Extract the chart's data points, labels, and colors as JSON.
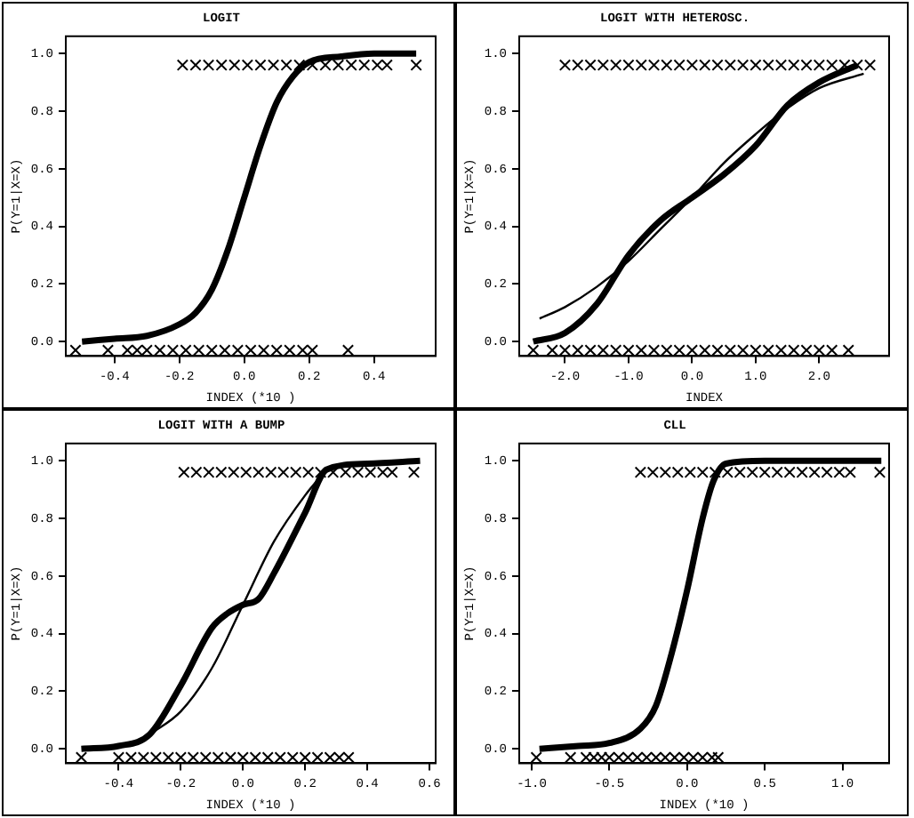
{
  "chart_data": [
    {
      "type": "line",
      "title": "LOGIT",
      "xlabel": "INDEX (*10 )",
      "ylabel": "P(Y=1|X=X)",
      "xlim": [
        -0.55,
        0.59
      ],
      "xticks": [
        {
          "value": -0.4,
          "label": "-0.4"
        },
        {
          "value": -0.2,
          "label": "-0.2"
        },
        {
          "value": 0,
          "label": "0.0"
        },
        {
          "value": 0.2,
          "label": "0.2"
        },
        {
          "value": 0.4,
          "label": "0.4"
        }
      ],
      "ylim": [
        -0.05,
        1.06
      ],
      "yticks": [
        {
          "value": 0,
          "label": "0.0"
        },
        {
          "value": 0.2,
          "label": "0.2"
        },
        {
          "value": 0.4,
          "label": "0.4"
        },
        {
          "value": 0.6,
          "label": "0.6"
        },
        {
          "value": 0.8,
          "label": "0.8"
        },
        {
          "value": 1,
          "label": "1.0"
        }
      ],
      "grid": false,
      "legend": false,
      "series": [
        {
          "marker": "none",
          "color": "#000000",
          "x": [
            -0.5,
            -0.4,
            -0.3,
            -0.2,
            -0.15,
            -0.1,
            -0.05,
            0,
            0.05,
            0.1,
            0.15,
            0.2,
            0.3,
            0.4,
            0.53
          ],
          "values": [
            0.0,
            0.01,
            0.02,
            0.06,
            0.1,
            0.18,
            0.32,
            0.5,
            0.68,
            0.83,
            0.92,
            0.97,
            0.99,
            1.0,
            1.0
          ]
        },
        {
          "type": "scatter",
          "marker": "cross",
          "color": "#000000",
          "x": [
            -0.19,
            -0.15,
            -0.11,
            -0.07,
            -0.03,
            0.01,
            0.05,
            0.09,
            0.13,
            0.17,
            0.21,
            0.25,
            0.29,
            0.33,
            0.37,
            0.41,
            0.44,
            0.53
          ],
          "values": [
            0.96,
            0.96,
            0.96,
            0.96,
            0.96,
            0.96,
            0.96,
            0.96,
            0.96,
            0.96,
            0.96,
            0.96,
            0.96,
            0.96,
            0.96,
            0.96,
            0.96,
            0.96
          ]
        },
        {
          "type": "scatter",
          "marker": "cross",
          "color": "#000000",
          "x": [
            -0.52,
            -0.42,
            -0.36,
            -0.33,
            -0.3,
            -0.26,
            -0.22,
            -0.18,
            -0.14,
            -0.1,
            -0.06,
            -0.02,
            0.02,
            0.06,
            0.1,
            0.14,
            0.18,
            0.21,
            0.32
          ],
          "values": [
            -0.03,
            -0.03,
            -0.03,
            -0.03,
            -0.03,
            -0.03,
            -0.03,
            -0.03,
            -0.03,
            -0.03,
            -0.03,
            -0.03,
            -0.03,
            -0.03,
            -0.03,
            -0.03,
            -0.03,
            -0.03,
            -0.03
          ]
        }
      ]
    },
    {
      "type": "line",
      "title": "LOGIT WITH HETEROSC.",
      "xlabel": "INDEX",
      "ylabel": "P(Y=1|X=X)",
      "xlim": [
        -2.72,
        3.1
      ],
      "xticks": [
        {
          "value": -2,
          "label": "-2.0"
        },
        {
          "value": -1,
          "label": "-1.0"
        },
        {
          "value": 0,
          "label": "0.0"
        },
        {
          "value": 1,
          "label": "1.0"
        },
        {
          "value": 2,
          "label": "2.0"
        }
      ],
      "ylim": [
        -0.05,
        1.06
      ],
      "yticks": [
        {
          "value": 0,
          "label": "0.0"
        },
        {
          "value": 0.2,
          "label": "0.2"
        },
        {
          "value": 0.4,
          "label": "0.4"
        },
        {
          "value": 0.6,
          "label": "0.6"
        },
        {
          "value": 0.8,
          "label": "0.8"
        },
        {
          "value": 1,
          "label": "1.0"
        }
      ],
      "grid": false,
      "legend": false,
      "series": [
        {
          "marker": "none",
          "color": "#000000",
          "x": [
            -2.5,
            -2.0,
            -1.5,
            -1.0,
            -0.5,
            0,
            0.5,
            1.0,
            1.5,
            2.0,
            2.6
          ],
          "values": [
            0.0,
            0.03,
            0.13,
            0.3,
            0.42,
            0.5,
            0.58,
            0.68,
            0.82,
            0.9,
            0.96
          ]
        },
        {
          "marker": "none",
          "color": "#000000",
          "x": [
            -2.4,
            -2.0,
            -1.5,
            -1.0,
            -0.5,
            0,
            0.5,
            1.0,
            1.5,
            2.0,
            2.7
          ],
          "values": [
            0.08,
            0.12,
            0.19,
            0.28,
            0.39,
            0.5,
            0.62,
            0.72,
            0.81,
            0.88,
            0.93
          ]
        },
        {
          "type": "scatter",
          "marker": "cross",
          "color": "#000000",
          "x": [
            -2.0,
            -1.8,
            -1.6,
            -1.4,
            -1.2,
            -1.0,
            -0.8,
            -0.6,
            -0.4,
            -0.2,
            0,
            0.2,
            0.4,
            0.6,
            0.8,
            1.0,
            1.2,
            1.4,
            1.6,
            1.8,
            2.0,
            2.2,
            2.4,
            2.6,
            2.8
          ],
          "values": [
            0.96,
            0.96,
            0.96,
            0.96,
            0.96,
            0.96,
            0.96,
            0.96,
            0.96,
            0.96,
            0.96,
            0.96,
            0.96,
            0.96,
            0.96,
            0.96,
            0.96,
            0.96,
            0.96,
            0.96,
            0.96,
            0.96,
            0.96,
            0.96,
            0.96
          ]
        },
        {
          "type": "scatter",
          "marker": "cross",
          "color": "#000000",
          "x": [
            -2.5,
            -2.2,
            -2.0,
            -1.8,
            -1.6,
            -1.4,
            -1.2,
            -1.0,
            -0.8,
            -0.6,
            -0.4,
            -0.2,
            0,
            0.2,
            0.4,
            0.6,
            0.8,
            1.0,
            1.2,
            1.4,
            1.6,
            1.8,
            2.0,
            2.2,
            2.46
          ],
          "values": [
            -0.03,
            -0.03,
            -0.03,
            -0.03,
            -0.03,
            -0.03,
            -0.03,
            -0.03,
            -0.03,
            -0.03,
            -0.03,
            -0.03,
            -0.03,
            -0.03,
            -0.03,
            -0.03,
            -0.03,
            -0.03,
            -0.03,
            -0.03,
            -0.03,
            -0.03,
            -0.03,
            -0.03,
            -0.03
          ]
        }
      ]
    },
    {
      "type": "line",
      "title": "LOGIT WITH A BUMP",
      "xlabel": "INDEX (*10 )",
      "ylabel": "P(Y=1|X=X)",
      "xlim": [
        -0.57,
        0.62
      ],
      "xticks": [
        {
          "value": -0.4,
          "label": "-0.4"
        },
        {
          "value": -0.2,
          "label": "-0.2"
        },
        {
          "value": 0,
          "label": "0.0"
        },
        {
          "value": 0.2,
          "label": "0.2"
        },
        {
          "value": 0.4,
          "label": "0.4"
        },
        {
          "value": 0.6,
          "label": "0.6"
        }
      ],
      "ylim": [
        -0.05,
        1.06
      ],
      "yticks": [
        {
          "value": 0,
          "label": "0.0"
        },
        {
          "value": 0.2,
          "label": "0.2"
        },
        {
          "value": 0.4,
          "label": "0.4"
        },
        {
          "value": 0.6,
          "label": "0.6"
        },
        {
          "value": 0.8,
          "label": "0.8"
        },
        {
          "value": 1,
          "label": "1.0"
        }
      ],
      "grid": false,
      "legend": false,
      "series": [
        {
          "marker": "none",
          "color": "#000000",
          "x": [
            -0.52,
            -0.4,
            -0.3,
            -0.2,
            -0.1,
            -0.05,
            0,
            0.05,
            0.1,
            0.2,
            0.27,
            0.4,
            0.57
          ],
          "values": [
            0.0,
            0.01,
            0.05,
            0.22,
            0.42,
            0.47,
            0.5,
            0.52,
            0.61,
            0.82,
            0.97,
            0.99,
            1.0
          ]
        },
        {
          "marker": "none",
          "color": "#000000",
          "x": [
            -0.3,
            -0.2,
            -0.1,
            0,
            0.1,
            0.2,
            0.27
          ],
          "values": [
            0.05,
            0.13,
            0.28,
            0.5,
            0.72,
            0.88,
            0.97
          ]
        },
        {
          "type": "scatter",
          "marker": "cross",
          "color": "#000000",
          "x": [
            -0.19,
            -0.15,
            -0.11,
            -0.07,
            -0.03,
            0.01,
            0.05,
            0.09,
            0.13,
            0.17,
            0.21,
            0.25,
            0.29,
            0.33,
            0.37,
            0.41,
            0.45,
            0.48,
            0.55
          ],
          "values": [
            0.96,
            0.96,
            0.96,
            0.96,
            0.96,
            0.96,
            0.96,
            0.96,
            0.96,
            0.96,
            0.96,
            0.96,
            0.96,
            0.96,
            0.96,
            0.96,
            0.96,
            0.96,
            0.96
          ]
        },
        {
          "type": "scatter",
          "marker": "cross",
          "color": "#000000",
          "x": [
            -0.52,
            -0.4,
            -0.36,
            -0.32,
            -0.28,
            -0.24,
            -0.2,
            -0.16,
            -0.12,
            -0.08,
            -0.04,
            0,
            0.04,
            0.08,
            0.12,
            0.16,
            0.2,
            0.24,
            0.28,
            0.31,
            0.34
          ],
          "values": [
            -0.03,
            -0.03,
            -0.03,
            -0.03,
            -0.03,
            -0.03,
            -0.03,
            -0.03,
            -0.03,
            -0.03,
            -0.03,
            -0.03,
            -0.03,
            -0.03,
            -0.03,
            -0.03,
            -0.03,
            -0.03,
            -0.03,
            -0.03,
            -0.03
          ]
        }
      ]
    },
    {
      "type": "line",
      "title": "CLL",
      "xlabel": "INDEX (*10 )",
      "ylabel": "P(Y=1|X=X)",
      "xlim": [
        -1.08,
        1.3
      ],
      "xticks": [
        {
          "value": -1,
          "label": "-1.0"
        },
        {
          "value": -0.5,
          "label": "-0.5"
        },
        {
          "value": 0,
          "label": "0.0"
        },
        {
          "value": 0.5,
          "label": "0.5"
        },
        {
          "value": 1,
          "label": "1.0"
        }
      ],
      "ylim": [
        -0.05,
        1.06
      ],
      "yticks": [
        {
          "value": 0,
          "label": "0.0"
        },
        {
          "value": 0.2,
          "label": "0.2"
        },
        {
          "value": 0.4,
          "label": "0.4"
        },
        {
          "value": 0.6,
          "label": "0.6"
        },
        {
          "value": 0.8,
          "label": "0.8"
        },
        {
          "value": 1,
          "label": "1.0"
        }
      ],
      "grid": false,
      "legend": false,
      "series": [
        {
          "marker": "none",
          "color": "#000000",
          "x": [
            -0.95,
            -0.7,
            -0.5,
            -0.3,
            -0.2,
            -0.1,
            0,
            0.1,
            0.17,
            0.25,
            0.5,
            1.0,
            1.25
          ],
          "values": [
            0.0,
            0.01,
            0.02,
            0.07,
            0.15,
            0.33,
            0.55,
            0.8,
            0.93,
            0.99,
            1.0,
            1.0,
            1.0
          ]
        },
        {
          "type": "scatter",
          "marker": "cross",
          "color": "#000000",
          "x": [
            -0.3,
            -0.22,
            -0.14,
            -0.06,
            0.02,
            0.1,
            0.18,
            0.26,
            0.34,
            0.42,
            0.5,
            0.58,
            0.66,
            0.74,
            0.82,
            0.9,
            0.98,
            1.05,
            1.24
          ],
          "values": [
            0.96,
            0.96,
            0.96,
            0.96,
            0.96,
            0.96,
            0.96,
            0.96,
            0.96,
            0.96,
            0.96,
            0.96,
            0.96,
            0.96,
            0.96,
            0.96,
            0.96,
            0.96,
            0.96
          ]
        },
        {
          "type": "scatter",
          "marker": "cross",
          "color": "#000000",
          "x": [
            -0.97,
            -0.75,
            -0.65,
            -0.6,
            -0.55,
            -0.5,
            -0.44,
            -0.38,
            -0.32,
            -0.26,
            -0.2,
            -0.14,
            -0.08,
            -0.02,
            0.04,
            0.1,
            0.16,
            0.2
          ],
          "values": [
            -0.03,
            -0.03,
            -0.03,
            -0.03,
            -0.03,
            -0.03,
            -0.03,
            -0.03,
            -0.03,
            -0.03,
            -0.03,
            -0.03,
            -0.03,
            -0.03,
            -0.03,
            -0.03,
            -0.03,
            -0.03
          ]
        }
      ]
    }
  ]
}
